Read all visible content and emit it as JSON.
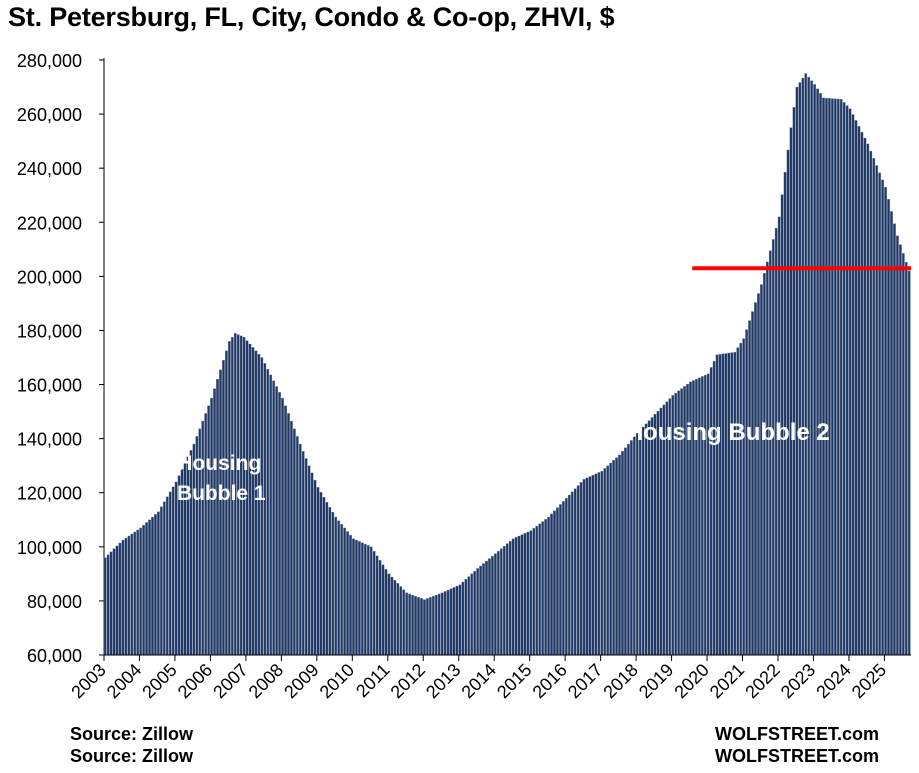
{
  "title": "St. Petersburg, FL, City, Condo & Co-op, ZHVI, $",
  "footer": {
    "source_1": "Source: Zillow",
    "source_2": "Source: Zillow",
    "brand_1": "WOLFSTREET.com",
    "brand_2": "WOLFSTREET.com"
  },
  "colors": {
    "bar_fill": "#1f3864",
    "bar_edge": "#7f8ea8",
    "reference_line": "#ff0000",
    "annotation_text": "#ffffff"
  },
  "chart_data": {
    "type": "bar",
    "title": "St. Petersburg, FL, City, Condo & Co-op, ZHVI, $",
    "xlabel": "",
    "ylabel": "",
    "ylim": [
      60000,
      280000
    ],
    "y_ticks": [
      60000,
      80000,
      100000,
      120000,
      140000,
      160000,
      180000,
      200000,
      220000,
      240000,
      260000,
      280000
    ],
    "y_tick_labels": [
      "60,000",
      "80,000",
      "100,000",
      "120,000",
      "140,000",
      "160,000",
      "180,000",
      "200,000",
      "220,000",
      "240,000",
      "260,000",
      "280,000"
    ],
    "x_tick_labels": [
      "2003",
      "2004",
      "2005",
      "2006",
      "2007",
      "2008",
      "2009",
      "2010",
      "2011",
      "2012",
      "2013",
      "2014",
      "2015",
      "2016",
      "2017",
      "2018",
      "2019",
      "2020",
      "2021",
      "2022",
      "2023",
      "2024",
      "2025"
    ],
    "grid": false,
    "legend": "none",
    "series_frequency": "monthly",
    "start": "2003-01",
    "end": "2025-09",
    "key_points": [
      {
        "x": "2003-01",
        "y": 96000
      },
      {
        "x": "2003-07",
        "y": 102500
      },
      {
        "x": "2004-01",
        "y": 107000
      },
      {
        "x": "2004-07",
        "y": 113000
      },
      {
        "x": "2005-01",
        "y": 124000
      },
      {
        "x": "2005-07",
        "y": 138000
      },
      {
        "x": "2006-01",
        "y": 155000
      },
      {
        "x": "2006-07",
        "y": 176000
      },
      {
        "x": "2006-09",
        "y": 179000
      },
      {
        "x": "2006-12",
        "y": 177500
      },
      {
        "x": "2007-06",
        "y": 170000
      },
      {
        "x": "2008-01",
        "y": 155000
      },
      {
        "x": "2008-07",
        "y": 138000
      },
      {
        "x": "2009-01",
        "y": 122000
      },
      {
        "x": "2009-07",
        "y": 111000
      },
      {
        "x": "2010-01",
        "y": 103000
      },
      {
        "x": "2010-07",
        "y": 100000
      },
      {
        "x": "2011-01",
        "y": 90000
      },
      {
        "x": "2011-07",
        "y": 83000
      },
      {
        "x": "2012-01",
        "y": 80500
      },
      {
        "x": "2012-07",
        "y": 83000
      },
      {
        "x": "2013-01",
        "y": 86000
      },
      {
        "x": "2013-07",
        "y": 92000
      },
      {
        "x": "2014-01",
        "y": 97500
      },
      {
        "x": "2014-07",
        "y": 103000
      },
      {
        "x": "2015-01",
        "y": 106000
      },
      {
        "x": "2015-07",
        "y": 111000
      },
      {
        "x": "2016-01",
        "y": 118000
      },
      {
        "x": "2016-07",
        "y": 125000
      },
      {
        "x": "2017-01",
        "y": 128000
      },
      {
        "x": "2017-07",
        "y": 134000
      },
      {
        "x": "2018-01",
        "y": 142000
      },
      {
        "x": "2018-07",
        "y": 149000
      },
      {
        "x": "2019-01",
        "y": 156000
      },
      {
        "x": "2019-07",
        "y": 161000
      },
      {
        "x": "2020-01",
        "y": 164000
      },
      {
        "x": "2020-04",
        "y": 171000
      },
      {
        "x": "2020-10",
        "y": 172000
      },
      {
        "x": "2021-01",
        "y": 177000
      },
      {
        "x": "2021-07",
        "y": 197000
      },
      {
        "x": "2022-01",
        "y": 222000
      },
      {
        "x": "2022-05",
        "y": 255000
      },
      {
        "x": "2022-07",
        "y": 270000
      },
      {
        "x": "2022-10",
        "y": 275000
      },
      {
        "x": "2023-01",
        "y": 271000
      },
      {
        "x": "2023-04",
        "y": 266000
      },
      {
        "x": "2023-10",
        "y": 265500
      },
      {
        "x": "2024-01",
        "y": 262000
      },
      {
        "x": "2024-07",
        "y": 249000
      },
      {
        "x": "2025-01",
        "y": 233000
      },
      {
        "x": "2025-05",
        "y": 215000
      },
      {
        "x": "2025-09",
        "y": 202000
      }
    ],
    "reference_line": {
      "y": 203000,
      "x_start": "2019-08",
      "x_end": "2025-09"
    },
    "annotations": [
      {
        "text": "Housing",
        "at": "2006-04"
      },
      {
        "text": "Bubble 1",
        "at": "2006-04"
      },
      {
        "text": "Housing Bubble 2",
        "at": "2020-08"
      }
    ]
  }
}
